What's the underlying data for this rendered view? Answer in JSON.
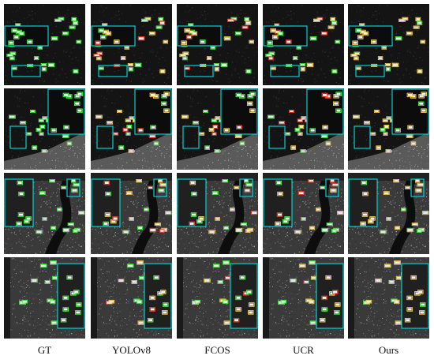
{
  "columns": [
    {
      "label": "GT"
    },
    {
      "label": "YOLOv8"
    },
    {
      "label": "FCOS"
    },
    {
      "label": "UCR"
    },
    {
      "label": "Ours"
    }
  ],
  "rows": [
    {
      "scene": "sea-dark",
      "inset_side": "left"
    },
    {
      "scene": "sea-coast",
      "inset_side": "right"
    },
    {
      "scene": "harbor-river",
      "inset_side": "left"
    },
    {
      "scene": "harbor-dense",
      "inset_side": "right"
    }
  ],
  "colors": {
    "inset_box": "#00d0d0",
    "gt_box": "#3cff3c",
    "true_positive": "#3cff3c",
    "false_positive": "#ff3a2a",
    "detection": "#ffd24a"
  }
}
